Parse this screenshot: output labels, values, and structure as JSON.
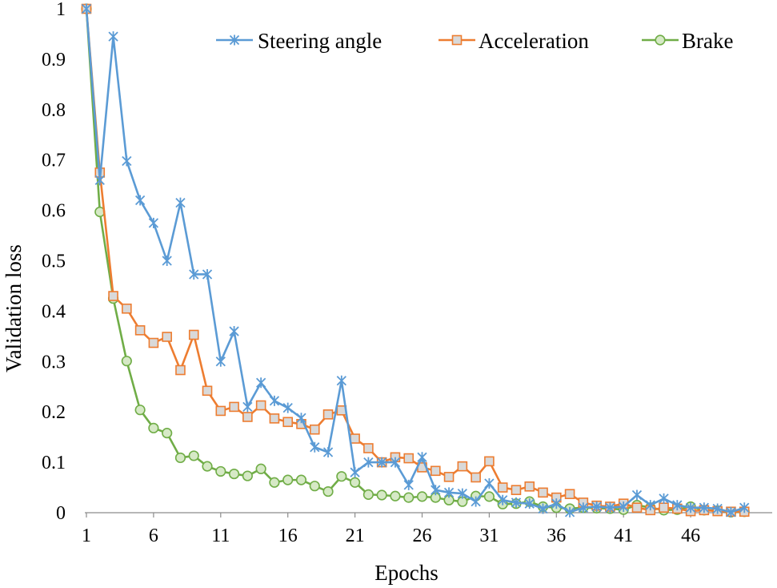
{
  "chart_data": {
    "type": "line",
    "title": "",
    "xlabel": "Epochs",
    "ylabel": "Validation loss",
    "ylim": [
      0,
      1
    ],
    "yticks": [
      "0",
      "0.1",
      "0.2",
      "0.3",
      "0.4",
      "0.5",
      "0.6",
      "0.7",
      "0.8",
      "0.9",
      "1"
    ],
    "xticks": [
      "1",
      "6",
      "11",
      "16",
      "21",
      "26",
      "31",
      "36",
      "41",
      "46"
    ],
    "xtick_values": [
      1,
      6,
      11,
      16,
      21,
      26,
      31,
      36,
      41,
      46
    ],
    "xlim": [
      1,
      50
    ],
    "legend_position": "top-right",
    "series": [
      {
        "name": "Steering angle",
        "color": "#5B9BD5",
        "marker": "asterisk",
        "values": [
          1.0,
          0.66,
          0.945,
          0.698,
          0.62,
          0.575,
          0.5,
          0.615,
          0.473,
          0.473,
          0.3,
          0.36,
          0.21,
          0.258,
          0.222,
          0.208,
          0.188,
          0.13,
          0.12,
          0.262,
          0.08,
          0.1,
          0.1,
          0.1,
          0.055,
          0.11,
          0.045,
          0.04,
          0.038,
          0.022,
          0.058,
          0.025,
          0.02,
          0.018,
          0.008,
          0.018,
          0.001,
          0.01,
          0.012,
          0.01,
          0.012,
          0.035,
          0.015,
          0.028,
          0.015,
          0.01,
          0.01,
          0.008,
          0.001,
          0.01
        ]
      },
      {
        "name": "Acceleration",
        "color": "#ED7D31",
        "marker": "square",
        "values": [
          1.0,
          0.675,
          0.43,
          0.405,
          0.362,
          0.337,
          0.349,
          0.283,
          0.353,
          0.242,
          0.202,
          0.21,
          0.19,
          0.213,
          0.187,
          0.18,
          0.176,
          0.165,
          0.195,
          0.203,
          0.147,
          0.128,
          0.1,
          0.11,
          0.108,
          0.09,
          0.083,
          0.071,
          0.092,
          0.07,
          0.102,
          0.05,
          0.045,
          0.052,
          0.04,
          0.03,
          0.037,
          0.02,
          0.014,
          0.012,
          0.018,
          0.01,
          0.005,
          0.01,
          0.008,
          0.003,
          0.005,
          0.003,
          0.002,
          0.002
        ]
      },
      {
        "name": "Brake",
        "color": "#70AD47",
        "marker": "circle",
        "values": [
          1.0,
          0.597,
          0.425,
          0.301,
          0.204,
          0.168,
          0.158,
          0.109,
          0.113,
          0.092,
          0.082,
          0.077,
          0.073,
          0.087,
          0.06,
          0.065,
          0.065,
          0.053,
          0.042,
          0.072,
          0.06,
          0.036,
          0.035,
          0.033,
          0.03,
          0.032,
          0.03,
          0.025,
          0.022,
          0.033,
          0.032,
          0.017,
          0.018,
          0.022,
          0.012,
          0.01,
          0.008,
          0.01,
          0.009,
          0.008,
          0.006,
          0.015,
          0.01,
          0.005,
          0.006,
          0.012,
          0.005,
          0.004,
          0.001,
          0.002
        ]
      }
    ]
  }
}
